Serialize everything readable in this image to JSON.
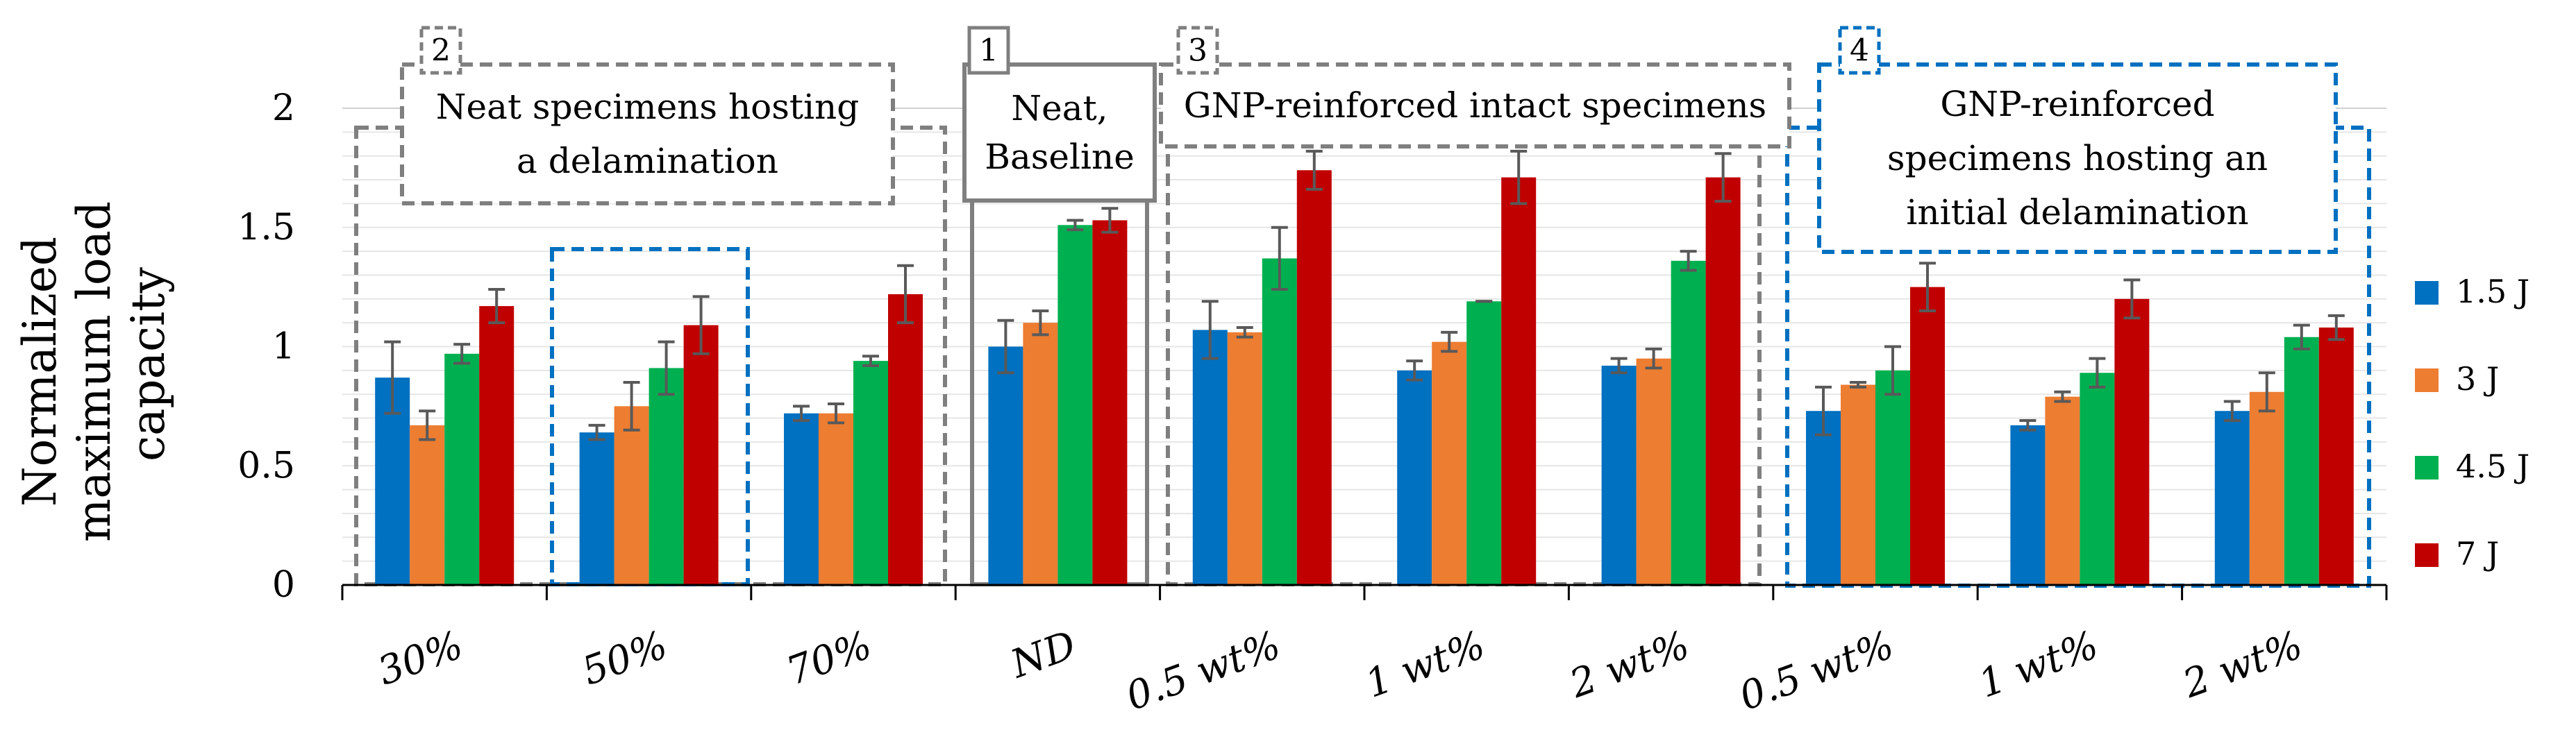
{
  "chart_data": {
    "type": "bar",
    "title": "",
    "ylabel": "Normalized maximum load capacity",
    "ylim": [
      0,
      2
    ],
    "y_ticks": [
      0,
      0.5,
      1,
      1.5,
      2
    ],
    "y_tick_labels": [
      "0",
      "0.5",
      "1",
      "1.5",
      "2"
    ],
    "grid": true,
    "legend_position": "right",
    "categories": [
      "30%",
      "50%",
      "70%",
      "ND",
      "0.5 wt%",
      "1 wt%",
      "2 wt%",
      "0.5 wt%",
      "1 wt%",
      "2 wt%"
    ],
    "series": [
      {
        "name": "1.5 J",
        "color": "#0070C0",
        "values": [
          0.87,
          0.64,
          0.72,
          1.0,
          1.07,
          0.9,
          0.92,
          0.73,
          0.67,
          0.73
        ],
        "errors": [
          0.15,
          0.03,
          0.03,
          0.11,
          0.12,
          0.04,
          0.03,
          0.1,
          0.02,
          0.04
        ]
      },
      {
        "name": "3 J",
        "color": "#ED7D31",
        "values": [
          0.67,
          0.75,
          0.72,
          1.1,
          1.06,
          1.02,
          0.95,
          0.84,
          0.79,
          0.81
        ],
        "errors": [
          0.06,
          0.1,
          0.04,
          0.05,
          0.02,
          0.04,
          0.04,
          0.01,
          0.02,
          0.08
        ]
      },
      {
        "name": "4.5 J",
        "color": "#00B050",
        "values": [
          0.97,
          0.91,
          0.94,
          1.51,
          1.37,
          1.19,
          1.36,
          0.9,
          0.89,
          1.04
        ],
        "errors": [
          0.04,
          0.11,
          0.02,
          0.02,
          0.13,
          0.0,
          0.04,
          0.1,
          0.06,
          0.05
        ]
      },
      {
        "name": "7 J",
        "color": "#C00000",
        "values": [
          1.17,
          1.09,
          1.22,
          1.53,
          1.74,
          1.71,
          1.71,
          1.25,
          1.2,
          1.08
        ],
        "errors": [
          0.07,
          0.12,
          0.12,
          0.05,
          0.08,
          0.11,
          0.1,
          0.1,
          0.08,
          0.05
        ]
      }
    ],
    "groups": [
      {
        "number": "2",
        "label_lines": [
          "Neat specimens hosting",
          "a delamination"
        ],
        "style": "gray-dashed"
      },
      {
        "number": "1",
        "label_lines": [
          "Neat,",
          "Baseline"
        ],
        "style": "gray-solid"
      },
      {
        "number": "3",
        "label_lines": [
          "GNP-reinforced intact specimens"
        ],
        "style": "gray-dashed"
      },
      {
        "number": "4",
        "label_lines": [
          "GNP-reinforced",
          "specimens hosting an",
          "initial delamination"
        ],
        "style": "blue-dashed"
      }
    ]
  }
}
